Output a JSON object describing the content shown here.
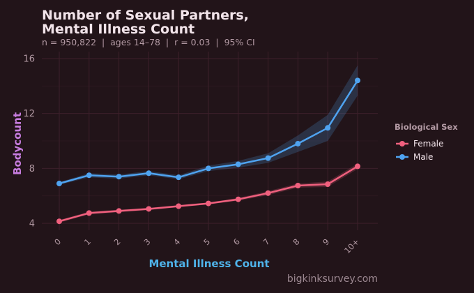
{
  "title_lines": [
    "Number of Sexual Partners,",
    "Mental Illness Count"
  ],
  "subtitle": "n = 950,822  |  ages 14–78  |  r = 0.03  |  95% CI",
  "watermark": "bigkinksurvey.com",
  "colors": {
    "background": "#221419",
    "grid": "#3c1f2a",
    "title": "#f2e4ea",
    "subtitle": "#b39aa4",
    "tick": "#b39aa4",
    "ylabel": "#c77ddf",
    "xlabel": "#4fb3ea",
    "legend_title": "#b39aa4",
    "legend_text": "#f2e4ea",
    "watermark": "#9c8891"
  },
  "chart_data": {
    "type": "line",
    "title": "Number of Sexual Partners, Mental Illness Count",
    "xlabel": "Mental Illness Count",
    "ylabel": "Bodycount",
    "categories": [
      "0",
      "1",
      "2",
      "3",
      "4",
      "5",
      "6",
      "7",
      "8",
      "9",
      "10+"
    ],
    "yticks": [
      4,
      8,
      12,
      16
    ],
    "ylim": [
      3.5,
      16.5
    ],
    "grid": true,
    "legend": {
      "title": "Biological Sex",
      "position": "right"
    },
    "series": [
      {
        "name": "Female",
        "color": "#f0607e",
        "values": [
          4.15,
          4.75,
          4.9,
          5.05,
          5.25,
          5.45,
          5.75,
          6.2,
          6.75,
          6.85,
          8.15
        ],
        "ci_low": [
          4.05,
          4.65,
          4.8,
          4.97,
          5.17,
          5.38,
          5.65,
          6.05,
          6.6,
          6.65,
          7.95
        ],
        "ci_high": [
          4.25,
          4.85,
          5.0,
          5.13,
          5.33,
          5.52,
          5.85,
          6.35,
          6.9,
          7.05,
          8.35
        ]
      },
      {
        "name": "Male",
        "color": "#4fa3f0",
        "values": [
          6.9,
          7.5,
          7.4,
          7.65,
          7.35,
          8.0,
          8.3,
          8.75,
          9.8,
          10.95,
          14.4
        ],
        "ci_low": [
          6.8,
          7.35,
          7.25,
          7.5,
          7.2,
          7.8,
          8.05,
          8.4,
          9.2,
          10.0,
          13.3
        ],
        "ci_high": [
          7.0,
          7.65,
          7.55,
          7.8,
          7.5,
          8.2,
          8.55,
          9.1,
          10.4,
          11.9,
          15.5
        ]
      }
    ]
  }
}
